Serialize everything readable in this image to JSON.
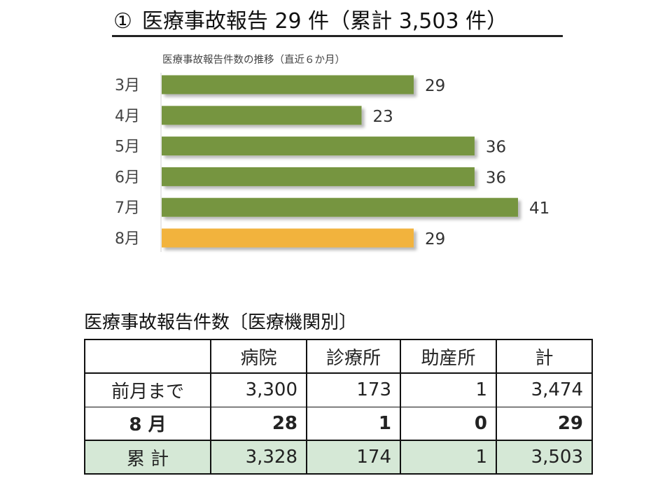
{
  "header": {
    "number": "①",
    "title": "医療事故報告 29 件（累計 3,503 件）"
  },
  "chart_data": {
    "type": "bar",
    "orientation": "horizontal",
    "title": "医療事故報告件数の推移（直近６か月）",
    "categories": [
      "3月",
      "4月",
      "5月",
      "6月",
      "7月",
      "8月"
    ],
    "values": [
      29,
      23,
      36,
      36,
      41,
      29
    ],
    "data_labels": [
      "29",
      "23",
      "36",
      "36",
      "41",
      "29"
    ],
    "colors": [
      "#76953f",
      "#76953f",
      "#76953f",
      "#76953f",
      "#76953f",
      "#f2b33d"
    ],
    "xlim": [
      0,
      41
    ],
    "grid": false,
    "legend": "none"
  },
  "table": {
    "caption": "医療事故報告件数〔医療機関別〕",
    "columns": [
      "",
      "病院",
      "診療所",
      "助産所",
      "計"
    ],
    "rows": [
      [
        "前月まで",
        "3,300",
        "173",
        "1",
        "3,474"
      ],
      [
        "8 月",
        "28",
        "1",
        "0",
        "29"
      ],
      [
        "累 計",
        "3,328",
        "174",
        "1",
        "3,503"
      ]
    ],
    "total_row_color": "#d5e8d6"
  }
}
